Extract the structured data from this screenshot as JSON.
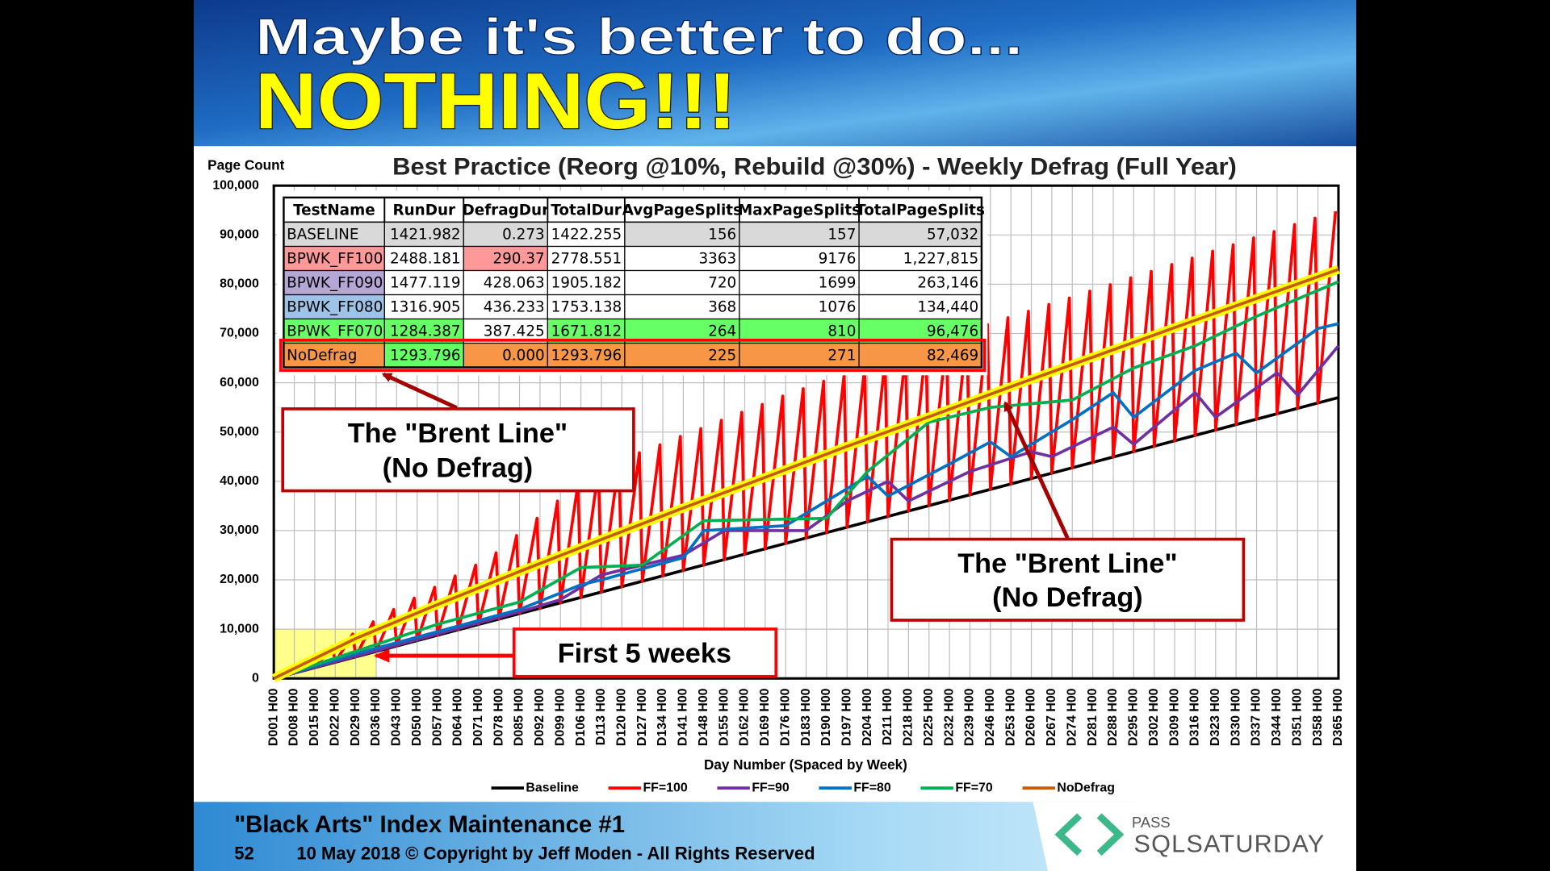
{
  "slide": {
    "title_line1": "Maybe it's better to do...",
    "title_line2": "NOTHING!!!",
    "footer_title": "\"Black Arts\" Index Maintenance #1",
    "page_number": "52",
    "copyright": "10 May 2018 © Copyright by Jeff Moden - All Rights Reserved",
    "logo_small": "PASS",
    "logo_large": "SQLSATURDAY"
  },
  "table": {
    "header": [
      "TestName",
      "RunDur",
      "DefragDur",
      "TotalDur",
      "AvgPageSplits",
      "MaxPageSplits",
      "TotalPageSplits"
    ],
    "rows": [
      [
        "BASELINE",
        "1421.982",
        "0.273",
        "1422.255",
        "156",
        "157",
        "57,032"
      ],
      [
        "BPWK_FF100",
        "2488.181",
        "290.37",
        "2778.551",
        "3363",
        "9176",
        "1,227,815"
      ],
      [
        "BPWK_FF090",
        "1477.119",
        "428.063",
        "1905.182",
        "720",
        "1699",
        "263,146"
      ],
      [
        "BPWK_FF080",
        "1316.905",
        "436.233",
        "1753.138",
        "368",
        "1076",
        "134,440"
      ],
      [
        "BPWK_FF070",
        "1284.387",
        "387.425",
        "1671.812",
        "264",
        "810",
        "96,476"
      ],
      [
        "NoDefrag",
        "1293.796",
        "0.000",
        "1293.796",
        "225",
        "271",
        "82,469"
      ]
    ]
  },
  "chart_data": {
    "type": "line",
    "title": "Best Practice (Reorg @10%, Rebuild @30%) - Weekly Defrag (Full Year)",
    "y_label": "Page Count",
    "x_label": "Day Number (Spaced by Week)",
    "xlim": [
      1,
      365
    ],
    "ylim": [
      0,
      100000
    ],
    "grid": true,
    "legend": "bottom",
    "yticks": [
      0,
      {
        "value": 10000,
        "label": "10,000"
      },
      {
        "value": 20000,
        "label": "20,000"
      },
      {
        "value": 30000,
        "label": "30,000"
      },
      {
        "value": 40000,
        "label": "40,000"
      },
      {
        "value": 50000,
        "label": "50,000"
      },
      {
        "value": 60000,
        "label": "60,000"
      },
      {
        "value": 70000,
        "label": "70,000"
      },
      {
        "value": 80000,
        "label": "80,000"
      },
      {
        "value": 90000,
        "label": "90,000"
      },
      {
        "value": 100000,
        "label": "100,000"
      }
    ],
    "xticks": [
      {
        "value": 1,
        "label": "D001 H00"
      },
      {
        "value": 8,
        "label": "D008 H00"
      },
      {
        "value": 15,
        "label": "D015 H00"
      },
      {
        "value": 22,
        "label": "D022 H00"
      },
      {
        "value": 29,
        "label": "D029 H00"
      },
      {
        "value": 36,
        "label": "D036 H00"
      },
      {
        "value": 43,
        "label": "D043 H00"
      },
      {
        "value": 50,
        "label": "D050 H00"
      },
      {
        "value": 57,
        "label": "D057 H00"
      },
      {
        "value": 64,
        "label": "D064 H00"
      },
      {
        "value": 71,
        "label": "D071 H00"
      },
      {
        "value": 78,
        "label": "D078 H00"
      },
      {
        "value": 85,
        "label": "D085 H00"
      },
      {
        "value": 92,
        "label": "D092 H00"
      },
      {
        "value": 99,
        "label": "D099 H00"
      },
      {
        "value": 106,
        "label": "D106 H00"
      },
      {
        "value": 113,
        "label": "D113 H00"
      },
      {
        "value": 120,
        "label": "D120 H00"
      },
      {
        "value": 127,
        "label": "D127 H00"
      },
      {
        "value": 134,
        "label": "D134 H00"
      },
      {
        "value": 141,
        "label": "D141 H00"
      },
      {
        "value": 148,
        "label": "D148 H00"
      },
      {
        "value": 155,
        "label": "D155 H00"
      },
      {
        "value": 162,
        "label": "D162 H00"
      },
      {
        "value": 169,
        "label": "D169 H00"
      },
      {
        "value": 176,
        "label": "D176 H00"
      },
      {
        "value": 183,
        "label": "D183 H00"
      },
      {
        "value": 190,
        "label": "D190 H00"
      },
      {
        "value": 197,
        "label": "D197 H00"
      },
      {
        "value": 204,
        "label": "D204 H00"
      },
      {
        "value": 211,
        "label": "D211 H00"
      },
      {
        "value": 218,
        "label": "D218 H00"
      },
      {
        "value": 225,
        "label": "D225 H00"
      },
      {
        "value": 232,
        "label": "D232 H00"
      },
      {
        "value": 239,
        "label": "D239 H00"
      },
      {
        "value": 246,
        "label": "D246 H00"
      },
      {
        "value": 253,
        "label": "D253 H00"
      },
      {
        "value": 260,
        "label": "D260 H00"
      },
      {
        "value": 267,
        "label": "D267 H00"
      },
      {
        "value": 274,
        "label": "D274 H00"
      },
      {
        "value": 281,
        "label": "D281 H00"
      },
      {
        "value": 288,
        "label": "D288 H00"
      },
      {
        "value": 295,
        "label": "D295 H00"
      },
      {
        "value": 302,
        "label": "D302 H00"
      },
      {
        "value": 309,
        "label": "D309 H00"
      },
      {
        "value": 316,
        "label": "D316 H00"
      },
      {
        "value": 323,
        "label": "D323 H00"
      },
      {
        "value": 330,
        "label": "D330 H00"
      },
      {
        "value": 337,
        "label": "D337 H00"
      },
      {
        "value": 344,
        "label": "D344 H00"
      },
      {
        "value": 351,
        "label": "D351 H00"
      },
      {
        "value": 358,
        "label": "D358 H00"
      },
      {
        "value": 365,
        "label": "D365 H00"
      }
    ],
    "highlight_region": {
      "x": [
        1,
        36
      ],
      "y": [
        0,
        10000
      ],
      "color": "#ffff66"
    },
    "series": [
      {
        "name": "Baseline",
        "color": "#000000",
        "x": [
          1,
          365
        ],
        "values": [
          0,
          57000
        ]
      },
      {
        "name": "FF=100",
        "color": "#ff0000",
        "x": [
          1,
          7,
          8,
          14,
          15,
          21,
          22,
          28,
          29,
          35,
          36,
          42,
          43,
          49,
          50,
          56,
          57,
          63,
          64,
          70,
          71,
          77,
          78,
          84,
          85,
          91,
          92,
          98,
          99,
          105,
          106,
          112,
          113,
          119,
          120,
          126,
          127,
          133,
          134,
          140,
          141,
          147,
          148,
          154,
          155,
          161,
          162,
          168,
          169,
          175,
          176,
          182,
          183,
          189,
          190,
          196,
          197,
          203,
          204,
          210,
          211,
          217,
          218,
          224,
          225,
          231,
          232,
          238,
          239,
          245,
          246,
          252,
          253,
          259,
          260,
          266,
          267,
          273,
          274,
          280,
          281,
          287,
          288,
          294,
          295,
          301,
          302,
          308,
          309,
          315,
          316,
          322,
          323,
          329,
          330,
          336,
          337,
          343,
          344,
          350,
          351,
          357,
          358,
          364
        ],
        "values": [
          0,
          1500,
          1100,
          4000,
          2200,
          6500,
          3300,
          9000,
          4400,
          11500,
          5500,
          14000,
          6600,
          16300,
          7700,
          18500,
          8800,
          20800,
          9900,
          23000,
          11000,
          25500,
          12100,
          29000,
          13200,
          32500,
          14200,
          36000,
          15300,
          39500,
          16400,
          42500,
          17500,
          44100,
          18600,
          45800,
          19700,
          47400,
          20800,
          49100,
          21900,
          50700,
          23000,
          52400,
          24100,
          54000,
          25200,
          55600,
          26300,
          57300,
          27400,
          58800,
          28500,
          60300,
          29600,
          61700,
          30700,
          63100,
          31800,
          64600,
          32900,
          66000,
          34000,
          67500,
          35100,
          68900,
          36200,
          70400,
          37300,
          71800,
          38400,
          73200,
          39500,
          74500,
          40600,
          75900,
          41700,
          77200,
          42700,
          78600,
          43800,
          79900,
          44900,
          81300,
          46000,
          82600,
          47100,
          84000,
          48200,
          85300,
          49300,
          86700,
          50400,
          88000,
          51500,
          89400,
          52600,
          90700,
          53700,
          92100,
          54800,
          93400,
          55900,
          94800
        ]
      },
      {
        "name": "FF=90",
        "color": "#7030a0",
        "x": [
          1,
          29,
          57,
          85,
          99,
          113,
          141,
          155,
          183,
          197,
          211,
          218,
          239,
          260,
          267,
          288,
          295,
          316,
          323,
          344,
          351,
          365
        ],
        "values": [
          0,
          4500,
          9000,
          13500,
          16000,
          21000,
          25000,
          30000,
          30000,
          36000,
          40000,
          36000,
          42000,
          46000,
          45000,
          51000,
          47500,
          58000,
          53000,
          62000,
          57500,
          67500
        ]
      },
      {
        "name": "FF=80",
        "color": "#0070c0",
        "x": [
          1,
          29,
          57,
          85,
          106,
          113,
          141,
          148,
          176,
          204,
          211,
          232,
          246,
          253,
          274,
          288,
          295,
          316,
          330,
          337,
          358,
          365
        ],
        "values": [
          0,
          5000,
          9500,
          14000,
          19000,
          20000,
          24500,
          30000,
          31000,
          41000,
          37000,
          43500,
          48000,
          45000,
          52500,
          58000,
          53000,
          62500,
          66000,
          62000,
          71000,
          72000
        ]
      },
      {
        "name": "FF=70",
        "color": "#00b050",
        "x": [
          1,
          29,
          57,
          85,
          106,
          127,
          148,
          190,
          204,
          225,
          246,
          274,
          295,
          316,
          337,
          365
        ],
        "values": [
          0,
          5500,
          11000,
          15500,
          22500,
          23000,
          32000,
          32500,
          42000,
          52000,
          55000,
          56500,
          63000,
          67500,
          73500,
          80500
        ]
      },
      {
        "name": "NoDefrag",
        "color": "#c55a11",
        "halo": "#ffff00",
        "x": [
          1,
          29,
          57,
          85,
          113,
          141,
          169,
          197,
          225,
          253,
          281,
          309,
          337,
          365
        ],
        "values": [
          0,
          8100,
          15000,
          21700,
          28200,
          34600,
          40800,
          47100,
          53100,
          59200,
          65200,
          71200,
          77100,
          83000
        ]
      }
    ],
    "annotations": [
      [
        "The \"Brent Line\"",
        "(No Defrag)"
      ],
      [
        "The \"Brent Line\"",
        "(No Defrag)"
      ],
      [
        "First 5 weeks"
      ]
    ]
  }
}
